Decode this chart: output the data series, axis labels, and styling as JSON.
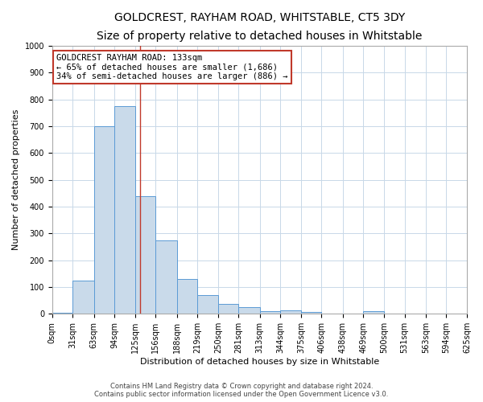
{
  "title": "GOLDCREST, RAYHAM ROAD, WHITSTABLE, CT5 3DY",
  "subtitle": "Size of property relative to detached houses in Whitstable",
  "xlabel": "Distribution of detached houses by size in Whitstable",
  "ylabel": "Number of detached properties",
  "bin_edges": [
    0,
    31,
    63,
    94,
    125,
    156,
    188,
    219,
    250,
    281,
    313,
    344,
    375,
    406,
    438,
    469,
    500,
    531,
    563,
    594,
    625
  ],
  "bar_heights": [
    5,
    125,
    700,
    775,
    440,
    275,
    130,
    70,
    37,
    25,
    10,
    12,
    8,
    0,
    0,
    10,
    0,
    0,
    0,
    0
  ],
  "bar_color": "#c9daea",
  "bar_edge_color": "#5b9bd5",
  "property_size": 133,
  "red_line_color": "#c0392b",
  "annotation_text": "GOLDCREST RAYHAM ROAD: 133sqm\n← 65% of detached houses are smaller (1,686)\n34% of semi-detached houses are larger (886) →",
  "annotation_box_color": "white",
  "annotation_box_edge_color": "#c0392b",
  "ylim": [
    0,
    1000
  ],
  "grid_color": "#c8d8e8",
  "background_color": "white",
  "footer_line1": "Contains HM Land Registry data © Crown copyright and database right 2024.",
  "footer_line2": "Contains public sector information licensed under the Open Government Licence v3.0.",
  "title_fontsize": 10,
  "subtitle_fontsize": 9,
  "tick_label_fontsize": 7,
  "ylabel_fontsize": 8,
  "xlabel_fontsize": 8,
  "annotation_fontsize": 7.5,
  "footer_fontsize": 6
}
